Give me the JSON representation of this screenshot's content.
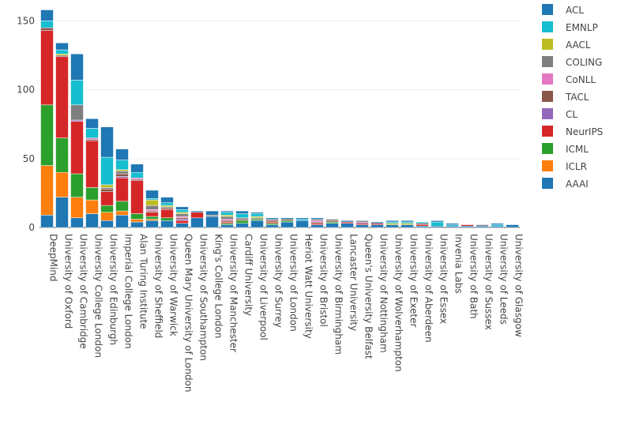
{
  "chart_data": {
    "type": "bar",
    "stacked": true,
    "ylim": [
      0,
      160
    ],
    "yticks": [
      0,
      50,
      100,
      150
    ],
    "grid": true,
    "legend_placement": "top-right",
    "categories": [
      "DeepMind",
      "University of Oxford",
      "University of Cambridge",
      "University College London",
      "University of Edinburgh",
      "Imperial College London",
      "Alan Turing Institute",
      "University of Sheffield",
      "University of Warwick",
      "Queen Mary University of London",
      "University of Southampton",
      "King's College London",
      "University of Manchester",
      "Cardiff University",
      "University of Liverpool",
      "University of Surrey",
      "University of London",
      "Heriot Watt University",
      "University of Bristol",
      "University of Birmingham",
      "Lancaster University",
      "Queen's University Belfast",
      "University of Nottingham",
      "University of Wolverhampton",
      "University of Exeter",
      "University of Aberdeen",
      "University of Essex",
      "Invenia Labs",
      "University of Bath",
      "University of Sussex",
      "University of Leeds",
      "University of Glasgow"
    ],
    "series": [
      {
        "name": "AAAI",
        "color": "#1f77b4",
        "values": [
          9,
          22,
          7,
          10,
          5,
          9,
          4,
          5,
          5,
          3,
          7,
          8,
          2,
          3,
          5,
          2,
          4,
          5,
          2,
          3,
          3,
          2,
          2,
          2,
          2,
          1,
          1,
          1,
          1,
          1,
          1,
          2
        ]
      },
      {
        "name": "ICLR",
        "color": "#ff7f0e",
        "values": [
          36,
          18,
          15,
          10,
          6,
          3,
          2,
          1,
          0,
          0,
          0,
          0,
          0,
          0,
          0,
          0,
          0,
          0,
          0,
          0,
          0,
          0,
          0,
          0,
          0,
          0,
          0,
          0,
          0,
          0,
          0,
          0
        ]
      },
      {
        "name": "ICML",
        "color": "#2ca02c",
        "values": [
          44,
          25,
          17,
          9,
          5,
          7,
          4,
          2,
          2,
          0,
          0,
          0,
          1,
          2,
          1,
          1,
          1,
          0,
          0,
          1,
          0,
          0,
          0,
          0,
          0,
          0,
          0,
          0,
          0,
          0,
          0,
          0
        ]
      },
      {
        "name": "NeurIPS",
        "color": "#d62728",
        "values": [
          54,
          59,
          38,
          34,
          10,
          17,
          24,
          3,
          6,
          2,
          4,
          0,
          1,
          0,
          0,
          1,
          0,
          0,
          1,
          0,
          1,
          1,
          1,
          0,
          0,
          1,
          0,
          0,
          1,
          0,
          0,
          0
        ]
      },
      {
        "name": "CL",
        "color": "#9467bd",
        "values": [
          0,
          0,
          1,
          0,
          0,
          1,
          0,
          0,
          0,
          1,
          0,
          0,
          0,
          0,
          0,
          0,
          0,
          0,
          0,
          0,
          0,
          1,
          0,
          0,
          0,
          0,
          0,
          0,
          0,
          0,
          0,
          0
        ]
      },
      {
        "name": "TACL",
        "color": "#8c564b",
        "values": [
          2,
          1,
          0,
          1,
          2,
          2,
          1,
          1,
          1,
          1,
          0,
          0,
          1,
          1,
          0,
          1,
          1,
          0,
          1,
          1,
          0,
          0,
          0,
          0,
          0,
          1,
          0,
          0,
          0,
          0,
          0,
          0
        ]
      },
      {
        "name": "CoNLL",
        "color": "#e377c2",
        "values": [
          0,
          0,
          0,
          1,
          0,
          0,
          1,
          1,
          0,
          1,
          0,
          0,
          1,
          0,
          0,
          0,
          0,
          0,
          1,
          0,
          0,
          0,
          0,
          0,
          0,
          0,
          0,
          0,
          0,
          0,
          0,
          0
        ]
      },
      {
        "name": "COLING",
        "color": "#7f7f7f",
        "values": [
          0,
          0,
          11,
          0,
          1,
          2,
          0,
          3,
          1,
          2,
          0,
          1,
          2,
          1,
          1,
          1,
          0,
          0,
          1,
          1,
          0,
          1,
          0,
          0,
          0,
          0,
          0,
          0,
          0,
          1,
          0,
          0
        ]
      },
      {
        "name": "AACL",
        "color": "#bcbd22",
        "values": [
          0,
          1,
          0,
          0,
          2,
          1,
          0,
          4,
          1,
          1,
          0,
          0,
          1,
          0,
          1,
          0,
          0,
          0,
          0,
          0,
          0,
          0,
          0,
          1,
          1,
          0,
          0,
          0,
          0,
          0,
          0,
          0
        ]
      },
      {
        "name": "EMNLP",
        "color": "#17becf",
        "values": [
          5,
          3,
          18,
          7,
          20,
          7,
          4,
          1,
          2,
          2,
          0,
          0,
          2,
          3,
          2,
          0,
          0,
          1,
          0,
          0,
          0,
          0,
          0,
          1,
          1,
          1,
          3,
          1,
          0,
          0,
          1,
          0
        ]
      },
      {
        "name": "ACL",
        "color": "#1f77b4",
        "values": [
          8,
          5,
          19,
          7,
          22,
          8,
          6,
          6,
          4,
          2,
          1,
          3,
          1,
          2,
          1,
          1,
          1,
          1,
          1,
          0,
          1,
          0,
          1,
          1,
          1,
          0,
          1,
          1,
          0,
          0,
          1,
          0
        ]
      }
    ],
    "legend_order": [
      "ACL",
      "EMNLP",
      "AACL",
      "COLING",
      "CoNLL",
      "TACL",
      "CL",
      "NeurIPS",
      "ICML",
      "ICLR",
      "AAAI"
    ]
  }
}
